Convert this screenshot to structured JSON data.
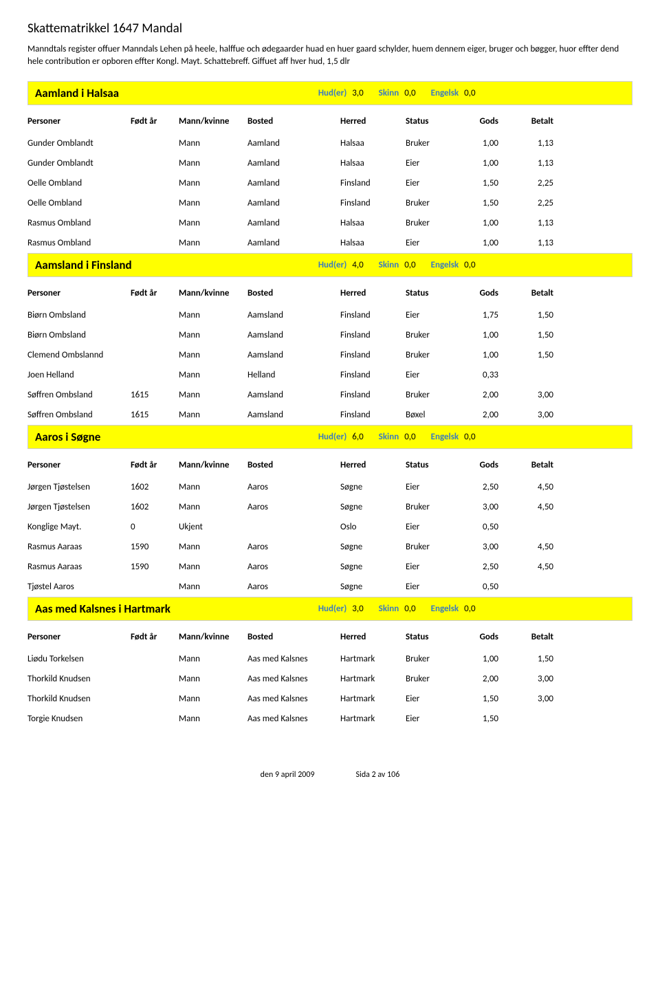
{
  "page_title": "Skattematrikkel 1647 Mandal",
  "intro_text": "Manndtals register offuer Manndals Lehen på heele, halffue och ødegaarder huad en huer gaard schylder, huem dennem eiger, bruger och bøgger, huor effter dend hele contribution er opboren effter Kongl. Mayt. Schattebreff. Giffuet aff hver hud, 1,5 dlr",
  "metric_labels": {
    "hud": "Hud(er)",
    "skinn": "Skinn",
    "engelsk": "Engelsk"
  },
  "col_headers": {
    "personer": "Personer",
    "fodt": "Født år",
    "mk": "Mann/kvinne",
    "bosted": "Bosted",
    "herred": "Herred",
    "status": "Status",
    "gods": "Gods",
    "betalt": "Betalt"
  },
  "sections": [
    {
      "title": "Aamland i Halsaa",
      "hud": "3,0",
      "skinn": "0,0",
      "engelsk": "0,0",
      "rows": [
        {
          "person": "Gunder Omblandt",
          "year": "",
          "mk": "Mann",
          "bosted": "Aamland",
          "herred": "Halsaa",
          "status": "Bruker",
          "gods": "1,00",
          "betalt": "1,13"
        },
        {
          "person": "Gunder Omblandt",
          "year": "",
          "mk": "Mann",
          "bosted": "Aamland",
          "herred": "Halsaa",
          "status": "Eier",
          "gods": "1,00",
          "betalt": "1,13"
        },
        {
          "person": "Oelle Ombland",
          "year": "",
          "mk": "Mann",
          "bosted": "Aamland",
          "herred": "Finsland",
          "status": "Eier",
          "gods": "1,50",
          "betalt": "2,25"
        },
        {
          "person": "Oelle Ombland",
          "year": "",
          "mk": "Mann",
          "bosted": "Aamland",
          "herred": "Finsland",
          "status": "Bruker",
          "gods": "1,50",
          "betalt": "2,25"
        },
        {
          "person": "Rasmus Ombland",
          "year": "",
          "mk": "Mann",
          "bosted": "Aamland",
          "herred": "Halsaa",
          "status": "Bruker",
          "gods": "1,00",
          "betalt": "1,13"
        },
        {
          "person": "Rasmus Ombland",
          "year": "",
          "mk": "Mann",
          "bosted": "Aamland",
          "herred": "Halsaa",
          "status": "Eier",
          "gods": "1,00",
          "betalt": "1,13"
        }
      ]
    },
    {
      "title": "Aamsland i Finsland",
      "hud": "4,0",
      "skinn": "0,0",
      "engelsk": "0,0",
      "rows": [
        {
          "person": "Biørn Ombsland",
          "year": "",
          "mk": "Mann",
          "bosted": "Aamsland",
          "herred": "Finsland",
          "status": "Eier",
          "gods": "1,75",
          "betalt": "1,50"
        },
        {
          "person": "Biørn Ombsland",
          "year": "",
          "mk": "Mann",
          "bosted": "Aamsland",
          "herred": "Finsland",
          "status": "Bruker",
          "gods": "1,00",
          "betalt": "1,50"
        },
        {
          "person": "Clemend Ombslannd",
          "year": "",
          "mk": "Mann",
          "bosted": "Aamsland",
          "herred": "Finsland",
          "status": "Bruker",
          "gods": "1,00",
          "betalt": "1,50"
        },
        {
          "person": "Joen Helland",
          "year": "",
          "mk": "Mann",
          "bosted": "Helland",
          "herred": "Finsland",
          "status": "Eier",
          "gods": "0,33",
          "betalt": ""
        },
        {
          "person": "Søffren Ombsland",
          "year": "1615",
          "mk": "Mann",
          "bosted": "Aamsland",
          "herred": "Finsland",
          "status": "Bruker",
          "gods": "2,00",
          "betalt": "3,00"
        },
        {
          "person": "Søffren Ombsland",
          "year": "1615",
          "mk": "Mann",
          "bosted": "Aamsland",
          "herred": "Finsland",
          "status": "Bøxel",
          "gods": "2,00",
          "betalt": "3,00"
        }
      ]
    },
    {
      "title": "Aaros i Søgne",
      "hud": "6,0",
      "skinn": "0,0",
      "engelsk": "0,0",
      "rows": [
        {
          "person": "Jørgen Tjøstelsen",
          "year": "1602",
          "mk": "Mann",
          "bosted": "Aaros",
          "herred": "Søgne",
          "status": "Eier",
          "gods": "2,50",
          "betalt": "4,50"
        },
        {
          "person": "Jørgen Tjøstelsen",
          "year": "1602",
          "mk": "Mann",
          "bosted": "Aaros",
          "herred": "Søgne",
          "status": "Bruker",
          "gods": "3,00",
          "betalt": "4,50"
        },
        {
          "person": "Konglige Mayt.",
          "year": "0",
          "mk": "Ukjent",
          "bosted": "",
          "herred": "Oslo",
          "status": "Eier",
          "gods": "0,50",
          "betalt": ""
        },
        {
          "person": "Rasmus Aaraas",
          "year": "1590",
          "mk": "Mann",
          "bosted": "Aaros",
          "herred": "Søgne",
          "status": "Bruker",
          "gods": "3,00",
          "betalt": "4,50"
        },
        {
          "person": "Rasmus Aaraas",
          "year": "1590",
          "mk": "Mann",
          "bosted": "Aaros",
          "herred": "Søgne",
          "status": "Eier",
          "gods": "2,50",
          "betalt": "4,50"
        },
        {
          "person": "Tjøstel Aaros",
          "year": "",
          "mk": "Mann",
          "bosted": "Aaros",
          "herred": "Søgne",
          "status": "Eier",
          "gods": "0,50",
          "betalt": ""
        }
      ]
    },
    {
      "title": "Aas med Kalsnes i Hartmark",
      "hud": "3,0",
      "skinn": "0,0",
      "engelsk": "0,0",
      "rows": [
        {
          "person": "Liødu Torkelsen",
          "year": "",
          "mk": "Mann",
          "bosted": "Aas med Kalsnes",
          "herred": "Hartmark",
          "status": "Bruker",
          "gods": "1,00",
          "betalt": "1,50"
        },
        {
          "person": "Thorkild Knudsen",
          "year": "",
          "mk": "Mann",
          "bosted": "Aas med Kalsnes",
          "herred": "Hartmark",
          "status": "Bruker",
          "gods": "2,00",
          "betalt": "3,00"
        },
        {
          "person": "Thorkild Knudsen",
          "year": "",
          "mk": "Mann",
          "bosted": "Aas med Kalsnes",
          "herred": "Hartmark",
          "status": "Eier",
          "gods": "1,50",
          "betalt": "3,00"
        },
        {
          "person": "Torgie Knudsen",
          "year": "",
          "mk": "Mann",
          "bosted": "Aas med Kalsnes",
          "herred": "Hartmark",
          "status": "Eier",
          "gods": "1,50",
          "betalt": ""
        }
      ]
    }
  ],
  "footer": {
    "date": "den 9 april 2009",
    "page": "Sida 2 av 106"
  }
}
